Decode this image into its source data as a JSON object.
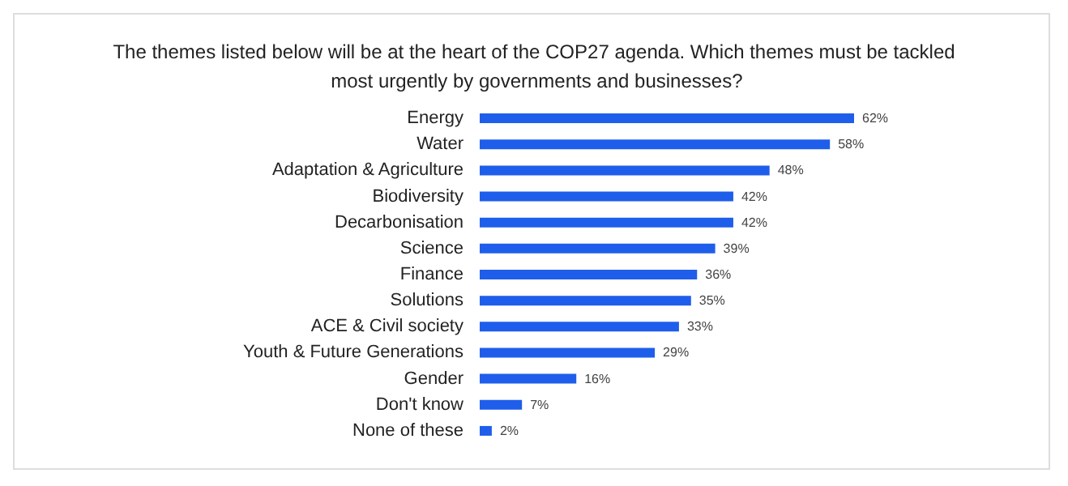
{
  "chart_data": {
    "type": "bar",
    "orientation": "horizontal",
    "title": "The themes listed below will be at the heart of the COP27 agenda. Which themes must be tackled most urgently by governments and businesses?",
    "categories": [
      "Energy",
      "Water",
      "Adaptation & Agriculture",
      "Biodiversity",
      "Decarbonisation",
      "Science",
      "Finance",
      "Solutions",
      "ACE & Civil society",
      "Youth & Future Generations",
      "Gender",
      "Don't know",
      "None of these"
    ],
    "values": [
      62,
      58,
      48,
      42,
      42,
      39,
      36,
      35,
      33,
      29,
      16,
      7,
      2
    ],
    "value_labels": [
      "62%",
      "58%",
      "48%",
      "42%",
      "42%",
      "39%",
      "36%",
      "35%",
      "33%",
      "29%",
      "16%",
      "7%",
      "2%"
    ],
    "color": "#1f5eea"
  }
}
